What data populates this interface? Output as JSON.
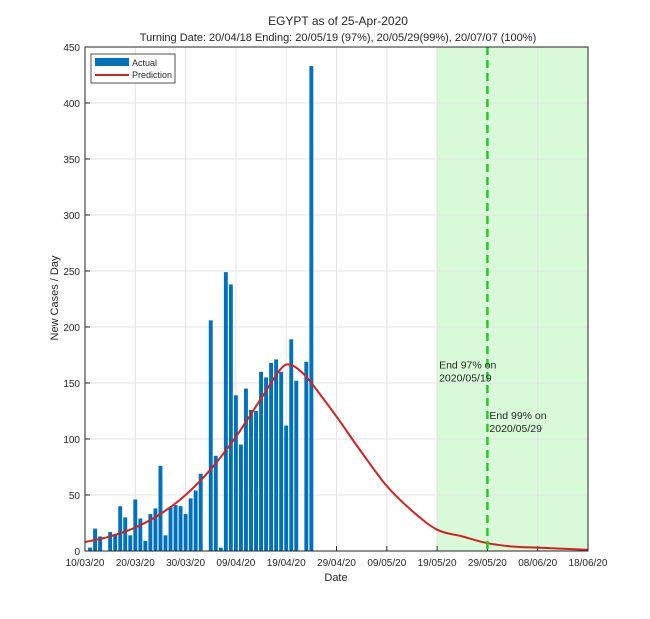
{
  "chart_data": {
    "type": "bar",
    "title": "EGYPT as of 25-Apr-2020",
    "subtitle": "Turning Date: 20/04/18  Ending: 20/05/19 (97%), 20/05/29(99%), 20/07/07 (100%)",
    "xlabel": "Date",
    "ylabel": "New Cases / Day",
    "xlim": [
      "2020-03-10",
      "2020-06-18"
    ],
    "ylim": [
      0,
      450
    ],
    "x_ticks": [
      "10/03/20",
      "20/03/20",
      "30/03/20",
      "09/04/20",
      "19/04/20",
      "29/04/20",
      "09/05/20",
      "19/05/20",
      "29/05/20",
      "08/06/20",
      "18/06/20"
    ],
    "y_ticks": [
      0,
      50,
      100,
      150,
      200,
      250,
      300,
      350,
      400,
      450
    ],
    "grid": true,
    "legend_position": "top-left",
    "actual": {
      "name": "Actual",
      "color": "#0072BD",
      "start_date": "2020-03-11",
      "values": [
        3,
        20,
        13,
        0,
        17,
        15,
        40,
        30,
        14,
        46,
        29,
        9,
        33,
        38,
        76,
        14,
        39,
        41,
        40,
        33,
        47,
        54,
        69,
        0,
        206,
        85,
        3,
        249,
        238,
        139,
        95,
        145,
        126,
        125,
        160,
        155,
        168,
        171,
        160,
        112,
        189,
        152,
        0,
        169,
        433
      ]
    },
    "prediction": {
      "name": "Prediction",
      "color": "#D62020",
      "points": [
        [
          "2020-03-10",
          8
        ],
        [
          "2020-03-15",
          13
        ],
        [
          "2020-03-20",
          21
        ],
        [
          "2020-03-25",
          33
        ],
        [
          "2020-03-30",
          50
        ],
        [
          "2020-04-04",
          73
        ],
        [
          "2020-04-09",
          102
        ],
        [
          "2020-04-14",
          136
        ],
        [
          "2020-04-18",
          163
        ],
        [
          "2020-04-20",
          166
        ],
        [
          "2020-04-22",
          160
        ],
        [
          "2020-04-24",
          150
        ],
        [
          "2020-04-29",
          120
        ],
        [
          "2020-05-04",
          88
        ],
        [
          "2020-05-09",
          58
        ],
        [
          "2020-05-14",
          36
        ],
        [
          "2020-05-19",
          19
        ],
        [
          "2020-05-24",
          13
        ],
        [
          "2020-05-29",
          7
        ],
        [
          "2020-06-03",
          4
        ],
        [
          "2020-06-08",
          3
        ],
        [
          "2020-06-13",
          2
        ],
        [
          "2020-06-18",
          1
        ]
      ]
    },
    "shaded_region": {
      "from": "2020-05-19",
      "to": "2020-06-18",
      "color": "#D8FAD8"
    },
    "marker_line": {
      "date": "2020-05-29",
      "color": "#22CC22",
      "style": "dashed"
    },
    "annotations": [
      {
        "lines": [
          "End 97% on",
          "2020/05/19"
        ],
        "date": "2020-05-19",
        "y": 163
      },
      {
        "lines": [
          "End 99% on",
          "2020/05/29"
        ],
        "date": "2020-05-29",
        "y": 118
      }
    ]
  }
}
